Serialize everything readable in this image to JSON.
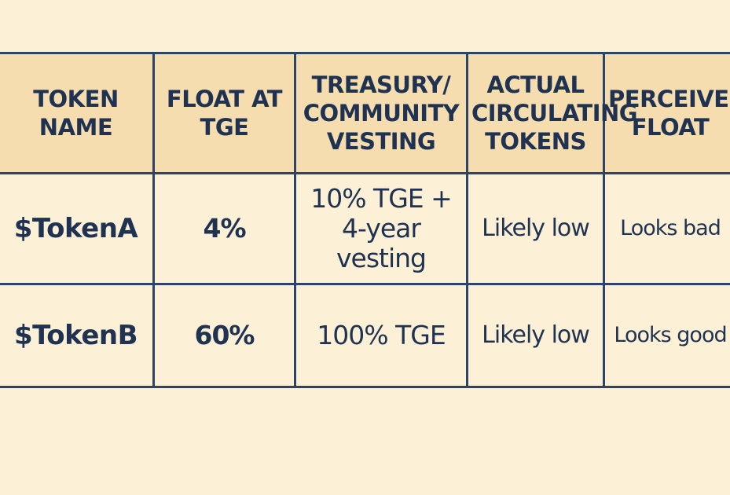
{
  "table": {
    "headers": [
      "TOKEN NAME",
      "FLOAT AT TGE",
      "TREASURY/ COMMUNITY VESTING",
      "ACTUAL CIRCULATING TOKENS",
      "PERCEIVED FLOAT"
    ],
    "rows": [
      [
        "$TokenA",
        "4%",
        "10% TGE + 4-year vesting",
        "Likely low",
        "Looks bad"
      ],
      [
        "$TokenB",
        "60%",
        "100% TGE",
        "Likely low",
        "Looks good"
      ]
    ]
  },
  "colors": {
    "background": "#fcf0d6",
    "header_background": "#f6ddb0",
    "border": "#2b4566",
    "text": "#1f3252"
  }
}
